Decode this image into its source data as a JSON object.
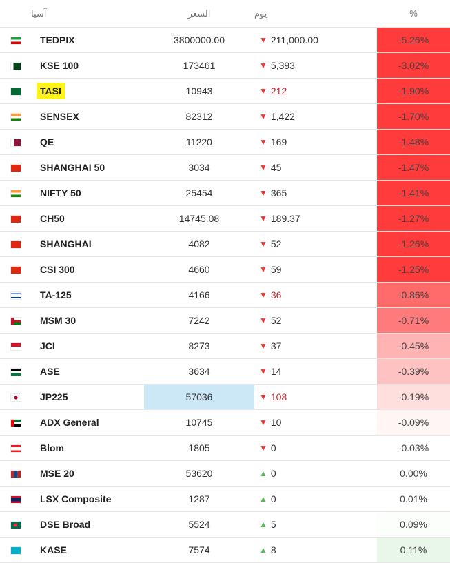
{
  "header": {
    "name_label": "آسيا",
    "price_label": "السعر",
    "change_label": "يوم",
    "pct_label": "%"
  },
  "rows": [
    {
      "flag": "iran-flag-icon",
      "flag_class": "f-ir",
      "name": "TEDPIX",
      "price": "3800000.00",
      "change": "211,000.00",
      "dir": "down",
      "pct": "-5.26%",
      "pct_bg": "#ff3b3b",
      "red_text": false,
      "hl_name": false,
      "hl_price": false
    },
    {
      "flag": "pakistan-flag-icon",
      "flag_class": "f-pk",
      "name": "KSE 100",
      "price": "173461",
      "change": "5,393",
      "dir": "down",
      "pct": "-3.02%",
      "pct_bg": "#ff3b3b",
      "red_text": false,
      "hl_name": false,
      "hl_price": false
    },
    {
      "flag": "saudi-arabia-flag-icon",
      "flag_class": "f-sa",
      "name": "TASI",
      "price": "10943",
      "change": "212",
      "dir": "down",
      "pct": "-1.90%",
      "pct_bg": "#ff3b3b",
      "red_text": true,
      "hl_name": true,
      "hl_price": false
    },
    {
      "flag": "india-flag-icon",
      "flag_class": "f-in",
      "name": "SENSEX",
      "price": "82312",
      "change": "1,422",
      "dir": "down",
      "pct": "-1.70%",
      "pct_bg": "#ff3b3b",
      "red_text": false,
      "hl_name": false,
      "hl_price": false
    },
    {
      "flag": "qatar-flag-icon",
      "flag_class": "f-qa",
      "name": "QE",
      "price": "11220",
      "change": "169",
      "dir": "down",
      "pct": "-1.48%",
      "pct_bg": "#ff3b3b",
      "red_text": false,
      "hl_name": false,
      "hl_price": false
    },
    {
      "flag": "china-flag-icon",
      "flag_class": "f-cn",
      "name": "SHANGHAI 50",
      "price": "3034",
      "change": "45",
      "dir": "down",
      "pct": "-1.47%",
      "pct_bg": "#ff3b3b",
      "red_text": false,
      "hl_name": false,
      "hl_price": false
    },
    {
      "flag": "india-flag-icon",
      "flag_class": "f-in",
      "name": "NIFTY 50",
      "price": "25454",
      "change": "365",
      "dir": "down",
      "pct": "-1.41%",
      "pct_bg": "#ff3b3b",
      "red_text": false,
      "hl_name": false,
      "hl_price": false
    },
    {
      "flag": "china-flag-icon",
      "flag_class": "f-cn",
      "name": "CH50",
      "price": "14745.08",
      "change": "189.37",
      "dir": "down",
      "pct": "-1.27%",
      "pct_bg": "#ff3b3b",
      "red_text": false,
      "hl_name": false,
      "hl_price": false
    },
    {
      "flag": "china-flag-icon",
      "flag_class": "f-cn",
      "name": "SHANGHAI",
      "price": "4082",
      "change": "52",
      "dir": "down",
      "pct": "-1.26%",
      "pct_bg": "#ff3b3b",
      "red_text": false,
      "hl_name": false,
      "hl_price": false
    },
    {
      "flag": "china-flag-icon",
      "flag_class": "f-cn",
      "name": "CSI 300",
      "price": "4660",
      "change": "59",
      "dir": "down",
      "pct": "-1.25%",
      "pct_bg": "#ff3b3b",
      "red_text": false,
      "hl_name": false,
      "hl_price": false
    },
    {
      "flag": "israel-flag-icon",
      "flag_class": "f-il",
      "name": "TA-125",
      "price": "4166",
      "change": "36",
      "dir": "down",
      "pct": "-0.86%",
      "pct_bg": "#ff6a6a",
      "red_text": true,
      "hl_name": false,
      "hl_price": false
    },
    {
      "flag": "oman-flag-icon",
      "flag_class": "f-om",
      "name": "MSM 30",
      "price": "7242",
      "change": "52",
      "dir": "down",
      "pct": "-0.71%",
      "pct_bg": "#ff7b7b",
      "red_text": false,
      "hl_name": false,
      "hl_price": false
    },
    {
      "flag": "indonesia-flag-icon",
      "flag_class": "f-id",
      "name": "JCI",
      "price": "8273",
      "change": "37",
      "dir": "down",
      "pct": "-0.45%",
      "pct_bg": "#ffb3b3",
      "red_text": false,
      "hl_name": false,
      "hl_price": false
    },
    {
      "flag": "jordan-flag-icon",
      "flag_class": "f-jo",
      "name": "ASE",
      "price": "3634",
      "change": "14",
      "dir": "down",
      "pct": "-0.39%",
      "pct_bg": "#ffc2c2",
      "red_text": false,
      "hl_name": false,
      "hl_price": false
    },
    {
      "flag": "japan-flag-icon",
      "flag_class": "f-jp",
      "name": "JP225",
      "price": "57036",
      "change": "108",
      "dir": "down",
      "pct": "-0.19%",
      "pct_bg": "#ffdede",
      "red_text": true,
      "hl_name": false,
      "hl_price": true
    },
    {
      "flag": "uae-flag-icon",
      "flag_class": "f-ae",
      "name": "ADX General",
      "price": "10745",
      "change": "10",
      "dir": "down",
      "pct": "-0.09%",
      "pct_bg": "#fff5f5",
      "red_text": false,
      "hl_name": false,
      "hl_price": false
    },
    {
      "flag": "lebanon-flag-icon",
      "flag_class": "f-lb",
      "name": "Blom",
      "price": "1805",
      "change": "0",
      "dir": "down",
      "pct": "-0.03%",
      "pct_bg": "#ffffff",
      "red_text": false,
      "hl_name": false,
      "hl_price": false
    },
    {
      "flag": "mongolia-flag-icon",
      "flag_class": "f-mn",
      "name": "MSE 20",
      "price": "53620",
      "change": "0",
      "dir": "up",
      "pct": "0.00%",
      "pct_bg": "#ffffff",
      "red_text": false,
      "hl_name": false,
      "hl_price": false
    },
    {
      "flag": "laos-flag-icon",
      "flag_class": "f-la",
      "name": "LSX Composite",
      "price": "1287",
      "change": "0",
      "dir": "up",
      "pct": "0.01%",
      "pct_bg": "#ffffff",
      "red_text": false,
      "hl_name": false,
      "hl_price": false
    },
    {
      "flag": "bangladesh-flag-icon",
      "flag_class": "f-bd",
      "name": "DSE Broad",
      "price": "5524",
      "change": "5",
      "dir": "up",
      "pct": "0.09%",
      "pct_bg": "#fbfefb",
      "red_text": false,
      "hl_name": false,
      "hl_price": false
    },
    {
      "flag": "kazakhstan-flag-icon",
      "flag_class": "f-kz",
      "name": "KASE",
      "price": "7574",
      "change": "8",
      "dir": "up",
      "pct": "0.11%",
      "pct_bg": "#e9f7e9",
      "red_text": false,
      "hl_name": false,
      "hl_price": false
    }
  ],
  "arrows": {
    "down": "▼",
    "up": "▲"
  }
}
